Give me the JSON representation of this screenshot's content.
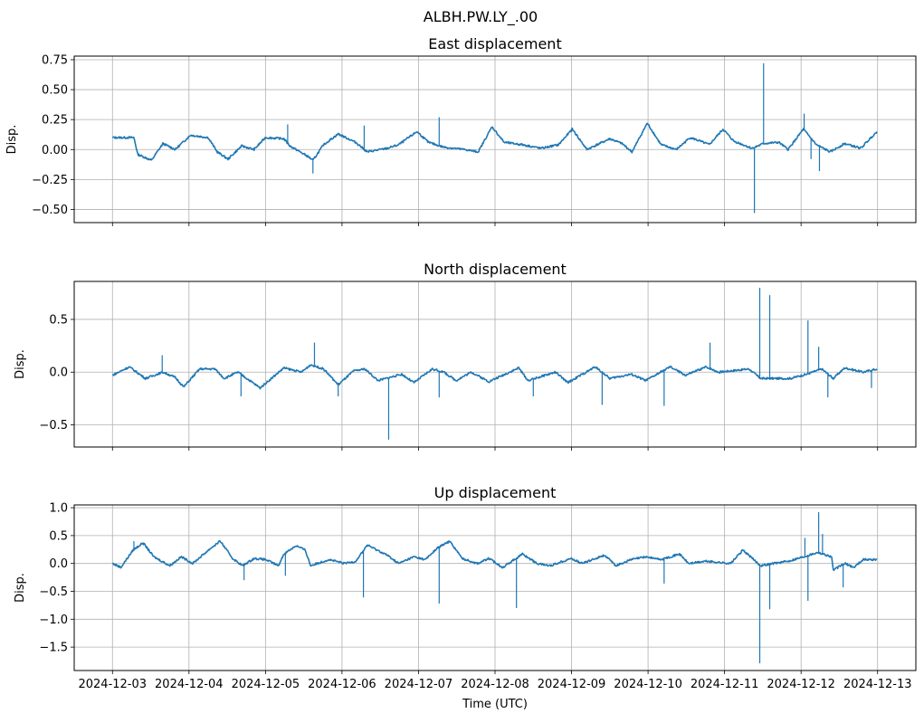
{
  "chart_data": {
    "type": "line",
    "title": "ALBH.PW.LY_.00",
    "xlabel": "Time (UTC)",
    "x_units": "days since 2024-12-03 00:00 UTC",
    "xlim": [
      -0.5,
      10.5
    ],
    "x_ticks": [
      0,
      1,
      2,
      3,
      4,
      5,
      6,
      7,
      8,
      9,
      10
    ],
    "x_tick_labels": [
      "2024-12-03",
      "2024-12-04",
      "2024-12-05",
      "2024-12-06",
      "2024-12-07",
      "2024-12-08",
      "2024-12-09",
      "2024-12-10",
      "2024-12-11",
      "2024-12-12",
      "2024-12-13"
    ],
    "grid": true,
    "color": "#1f77b4",
    "panels": [
      {
        "title": "East displacement",
        "ylabel": "Disp.",
        "ylim": [
          -0.61,
          0.78
        ],
        "y_ticks": [
          -0.5,
          -0.25,
          0,
          0.25,
          0.5,
          0.75
        ],
        "y_tick_labels": [
          "−0.50",
          "−0.25",
          "0.00",
          "0.25",
          "0.50",
          "0.75"
        ],
        "series": [
          [
            0,
            0.1
          ],
          [
            0.28,
            0.1
          ],
          [
            0.33,
            -0.04
          ],
          [
            0.51,
            -0.09
          ],
          [
            0.66,
            0.05
          ],
          [
            0.82,
            0.0
          ],
          [
            1.02,
            0.12
          ],
          [
            1.25,
            0.1
          ],
          [
            1.37,
            -0.02
          ],
          [
            1.51,
            -0.08
          ],
          [
            1.69,
            0.03
          ],
          [
            1.85,
            0.0
          ],
          [
            2.0,
            0.1
          ],
          [
            2.24,
            0.09
          ],
          [
            2.32,
            0.03
          ],
          [
            2.56,
            -0.06
          ],
          [
            2.62,
            -0.09
          ],
          [
            2.76,
            0.04
          ],
          [
            2.95,
            0.13
          ],
          [
            3.18,
            0.06
          ],
          [
            3.33,
            -0.02
          ],
          [
            3.59,
            0.01
          ],
          [
            3.74,
            0.04
          ],
          [
            3.98,
            0.15
          ],
          [
            4.13,
            0.06
          ],
          [
            4.33,
            0.02
          ],
          [
            4.6,
            0.0
          ],
          [
            4.78,
            -0.02
          ],
          [
            4.96,
            0.19
          ],
          [
            5.12,
            0.06
          ],
          [
            5.36,
            0.04
          ],
          [
            5.6,
            0.01
          ],
          [
            5.83,
            0.04
          ],
          [
            6.01,
            0.17
          ],
          [
            6.2,
            0.0
          ],
          [
            6.5,
            0.09
          ],
          [
            6.66,
            0.05
          ],
          [
            6.79,
            -0.02
          ],
          [
            6.99,
            0.22
          ],
          [
            7.17,
            0.04
          ],
          [
            7.37,
            0.0
          ],
          [
            7.55,
            0.1
          ],
          [
            7.68,
            0.07
          ],
          [
            7.8,
            0.04
          ],
          [
            7.98,
            0.17
          ],
          [
            8.12,
            0.07
          ],
          [
            8.36,
            0.01
          ],
          [
            8.51,
            0.05
          ],
          [
            8.71,
            0.06
          ],
          [
            8.83,
            0.0
          ],
          [
            9.03,
            0.17
          ],
          [
            9.2,
            0.04
          ],
          [
            9.38,
            -0.02
          ],
          [
            9.57,
            0.05
          ],
          [
            9.78,
            0.01
          ],
          [
            9.99,
            0.15
          ]
        ],
        "spikes": [
          [
            2.29,
            0.21
          ],
          [
            2.62,
            -0.2
          ],
          [
            3.29,
            0.2
          ],
          [
            4.27,
            0.27
          ],
          [
            8.39,
            -0.53
          ],
          [
            8.51,
            0.72
          ],
          [
            9.04,
            0.3
          ],
          [
            9.24,
            -0.18
          ],
          [
            9.13,
            -0.08
          ]
        ]
      },
      {
        "title": "North displacement",
        "ylabel": "Disp.",
        "ylim": [
          -0.71,
          0.86
        ],
        "y_ticks": [
          -0.5,
          0,
          0.5
        ],
        "y_tick_labels": [
          "−0.5",
          "0.0",
          "0.5"
        ],
        "series": [
          [
            0,
            -0.03
          ],
          [
            0.22,
            0.05
          ],
          [
            0.43,
            -0.06
          ],
          [
            0.66,
            0.0
          ],
          [
            0.82,
            -0.05
          ],
          [
            0.93,
            -0.14
          ],
          [
            1.14,
            0.03
          ],
          [
            1.34,
            0.03
          ],
          [
            1.46,
            -0.06
          ],
          [
            1.64,
            0.0
          ],
          [
            1.93,
            -0.15
          ],
          [
            2.24,
            0.04
          ],
          [
            2.47,
            0.0
          ],
          [
            2.59,
            0.07
          ],
          [
            2.76,
            0.03
          ],
          [
            2.95,
            -0.12
          ],
          [
            3.15,
            0.01
          ],
          [
            3.3,
            0.03
          ],
          [
            3.47,
            -0.08
          ],
          [
            3.78,
            -0.02
          ],
          [
            3.94,
            -0.1
          ],
          [
            4.18,
            0.03
          ],
          [
            4.33,
            0.0
          ],
          [
            4.49,
            -0.08
          ],
          [
            4.69,
            0.0
          ],
          [
            4.92,
            -0.09
          ],
          [
            5.31,
            0.04
          ],
          [
            5.43,
            -0.08
          ],
          [
            5.79,
            0.0
          ],
          [
            5.95,
            -0.1
          ],
          [
            6.31,
            0.05
          ],
          [
            6.5,
            -0.06
          ],
          [
            6.78,
            -0.02
          ],
          [
            6.97,
            -0.08
          ],
          [
            7.29,
            0.05
          ],
          [
            7.49,
            -0.03
          ],
          [
            7.76,
            0.05
          ],
          [
            7.92,
            0.0
          ],
          [
            8.32,
            0.03
          ],
          [
            8.47,
            -0.06
          ],
          [
            8.86,
            -0.06
          ],
          [
            9.07,
            -0.02
          ],
          [
            9.27,
            0.03
          ],
          [
            9.42,
            -0.06
          ],
          [
            9.57,
            0.04
          ],
          [
            9.81,
            0.0
          ],
          [
            9.99,
            0.03
          ]
        ],
        "spikes": [
          [
            0.65,
            0.16
          ],
          [
            1.68,
            -0.23
          ],
          [
            2.64,
            0.28
          ],
          [
            2.95,
            -0.23
          ],
          [
            3.61,
            -0.64
          ],
          [
            4.27,
            -0.24
          ],
          [
            5.5,
            -0.23
          ],
          [
            6.4,
            -0.31
          ],
          [
            7.21,
            -0.32
          ],
          [
            7.81,
            0.28
          ],
          [
            8.46,
            0.8
          ],
          [
            8.59,
            0.73
          ],
          [
            9.09,
            0.49
          ],
          [
            9.23,
            0.24
          ],
          [
            9.35,
            -0.24
          ],
          [
            9.92,
            -0.15
          ]
        ]
      },
      {
        "title": "Up displacement",
        "ylabel": "Disp.",
        "ylim": [
          -1.92,
          1.05
        ],
        "y_ticks": [
          -1.5,
          -1.0,
          -0.5,
          0,
          0.5,
          1.0
        ],
        "y_tick_labels": [
          "−1.5",
          "−1.0",
          "−0.5",
          "0.0",
          "0.5",
          "1.0"
        ],
        "series": [
          [
            0,
            0.0
          ],
          [
            0.11,
            -0.07
          ],
          [
            0.27,
            0.24
          ],
          [
            0.4,
            0.37
          ],
          [
            0.54,
            0.12
          ],
          [
            0.75,
            -0.04
          ],
          [
            0.9,
            0.12
          ],
          [
            1.05,
            0.0
          ],
          [
            1.29,
            0.28
          ],
          [
            1.41,
            0.4
          ],
          [
            1.57,
            0.09
          ],
          [
            1.7,
            -0.04
          ],
          [
            1.85,
            0.09
          ],
          [
            2.0,
            0.07
          ],
          [
            2.17,
            -0.04
          ],
          [
            2.24,
            0.17
          ],
          [
            2.4,
            0.32
          ],
          [
            2.52,
            0.24
          ],
          [
            2.59,
            -0.04
          ],
          [
            2.83,
            0.07
          ],
          [
            3.03,
            0.0
          ],
          [
            3.18,
            0.04
          ],
          [
            3.33,
            0.33
          ],
          [
            3.59,
            0.15
          ],
          [
            3.74,
            0.0
          ],
          [
            3.94,
            0.12
          ],
          [
            4.09,
            0.07
          ],
          [
            4.25,
            0.28
          ],
          [
            4.41,
            0.4
          ],
          [
            4.57,
            0.09
          ],
          [
            4.77,
            0.0
          ],
          [
            4.92,
            0.09
          ],
          [
            5.1,
            -0.07
          ],
          [
            5.36,
            0.17
          ],
          [
            5.55,
            0.0
          ],
          [
            5.72,
            -0.04
          ],
          [
            5.99,
            0.09
          ],
          [
            6.14,
            0.0
          ],
          [
            6.43,
            0.15
          ],
          [
            6.58,
            -0.04
          ],
          [
            6.78,
            0.07
          ],
          [
            6.97,
            0.12
          ],
          [
            7.17,
            0.07
          ],
          [
            7.41,
            0.17
          ],
          [
            7.53,
            0.0
          ],
          [
            7.76,
            0.04
          ],
          [
            8.08,
            0.0
          ],
          [
            8.24,
            0.24
          ],
          [
            8.47,
            -0.04
          ],
          [
            8.63,
            0.0
          ],
          [
            8.83,
            0.04
          ],
          [
            9.03,
            0.12
          ],
          [
            9.22,
            0.2
          ],
          [
            9.4,
            0.12
          ],
          [
            9.42,
            -0.12
          ],
          [
            9.57,
            0.0
          ],
          [
            9.69,
            -0.07
          ],
          [
            9.81,
            0.07
          ],
          [
            9.99,
            0.07
          ]
        ],
        "spikes": [
          [
            0.28,
            0.4
          ],
          [
            1.72,
            -0.3
          ],
          [
            2.26,
            -0.22
          ],
          [
            3.28,
            -0.61
          ],
          [
            4.27,
            -0.72
          ],
          [
            5.28,
            -0.8
          ],
          [
            7.21,
            -0.36
          ],
          [
            8.46,
            -1.79
          ],
          [
            8.59,
            -0.82
          ],
          [
            9.05,
            0.46
          ],
          [
            9.09,
            -0.67
          ],
          [
            9.23,
            0.92
          ],
          [
            9.28,
            0.53
          ],
          [
            9.55,
            -0.43
          ]
        ]
      }
    ]
  }
}
